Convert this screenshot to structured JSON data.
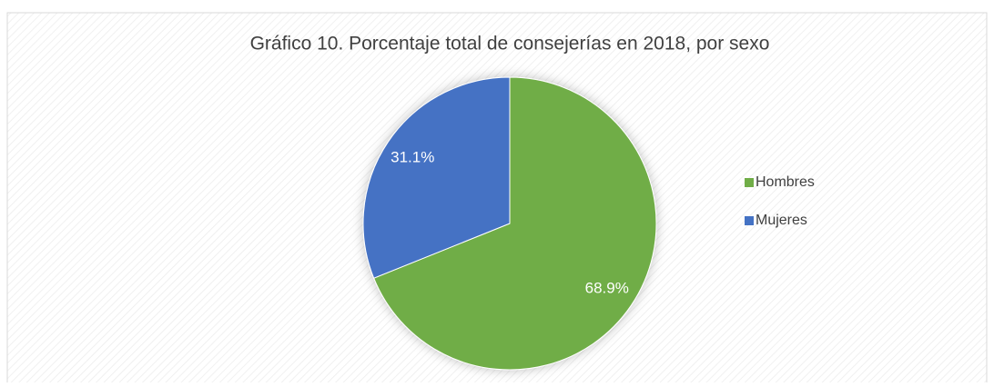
{
  "chart_data": {
    "type": "pie",
    "title": "Gráfico 10. Porcentaje total de consejerías en 2018, por sexo",
    "categories": [
      "Hombres",
      "Mujeres"
    ],
    "values": [
      68.9,
      31.1
    ],
    "value_labels": [
      "68.9%",
      "31.1%"
    ],
    "colors": [
      "#70ad47",
      "#4472c4"
    ],
    "legend": "right"
  }
}
